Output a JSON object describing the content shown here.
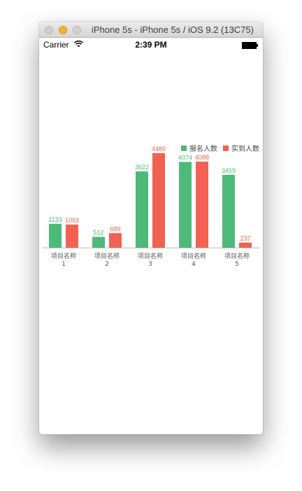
{
  "window": {
    "title": "iPhone 5s - iPhone 5s / iOS 9.2 (13C75)"
  },
  "statusbar": {
    "carrier": "Carrier",
    "time": "2:39 PM",
    "wifi_icon": "wifi-icon",
    "battery_icon": "battery-icon"
  },
  "colors": {
    "registered": "#4dba79",
    "attended": "#f26151",
    "axis": "#bbbbbb",
    "tick_label": "#555555"
  },
  "chart_data": {
    "type": "bar",
    "categories": [
      [
        "项目名称",
        "1"
      ],
      [
        "项目名称",
        "2"
      ],
      [
        "项目名称",
        "3"
      ],
      [
        "项目名称",
        "4"
      ],
      [
        "项目名称",
        "5"
      ]
    ],
    "series": [
      {
        "name": "报名人数",
        "values": [
          1133,
          512,
          3622,
          4074,
          3459
        ]
      },
      {
        "name": "实到人数",
        "values": [
          1093,
          689,
          4489,
          4088,
          237
        ]
      }
    ],
    "ylim": [
      0,
      4489
    ],
    "grid": false,
    "legend_position": "top-right",
    "data_labels": true
  }
}
